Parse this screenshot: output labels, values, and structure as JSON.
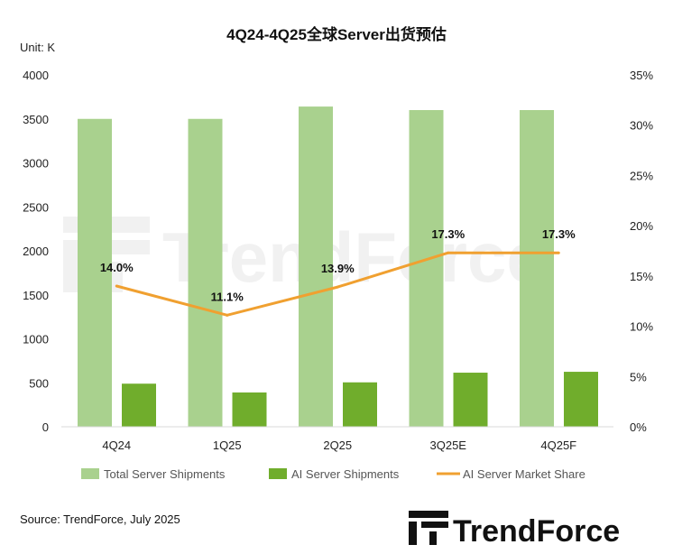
{
  "chart_data": {
    "type": "bar",
    "title": "4Q24-4Q25全球Server出货预估",
    "unit_label": "Unit: K",
    "categories": [
      "4Q24",
      "1Q25",
      "2Q25",
      "3Q25E",
      "4Q25F"
    ],
    "series": [
      {
        "name": "Total Server Shipments",
        "kind": "bar",
        "axis": "left",
        "color": "#a9d18e",
        "values": [
          3500,
          3500,
          3640,
          3600,
          3600
        ]
      },
      {
        "name": "AI Server Shipments",
        "kind": "bar",
        "axis": "left",
        "color": "#70ad2c",
        "values": [
          490,
          390,
          505,
          615,
          625
        ]
      },
      {
        "name": "AI Server Market Share",
        "kind": "line",
        "axis": "right",
        "color": "#f0a030",
        "values": [
          14.0,
          11.1,
          13.9,
          17.3,
          17.3
        ]
      }
    ],
    "data_labels": [
      "14.0%",
      "11.1%",
      "13.9%",
      "17.3%",
      "17.3%"
    ],
    "y_left": {
      "min": 0,
      "max": 4000,
      "ticks": [
        "0",
        "500",
        "1000",
        "1500",
        "2000",
        "2500",
        "3000",
        "3500",
        "4000"
      ]
    },
    "y_right": {
      "min": 0,
      "max": 35,
      "ticks": [
        "0%",
        "5%",
        "10%",
        "15%",
        "20%",
        "25%",
        "30%",
        "35%"
      ]
    },
    "grid": false,
    "legend_position": "bottom"
  },
  "footer": {
    "source": "Source: TrendForce, July 2025",
    "logo_text": "TrendForce",
    "watermark_text": "TrendForce"
  }
}
